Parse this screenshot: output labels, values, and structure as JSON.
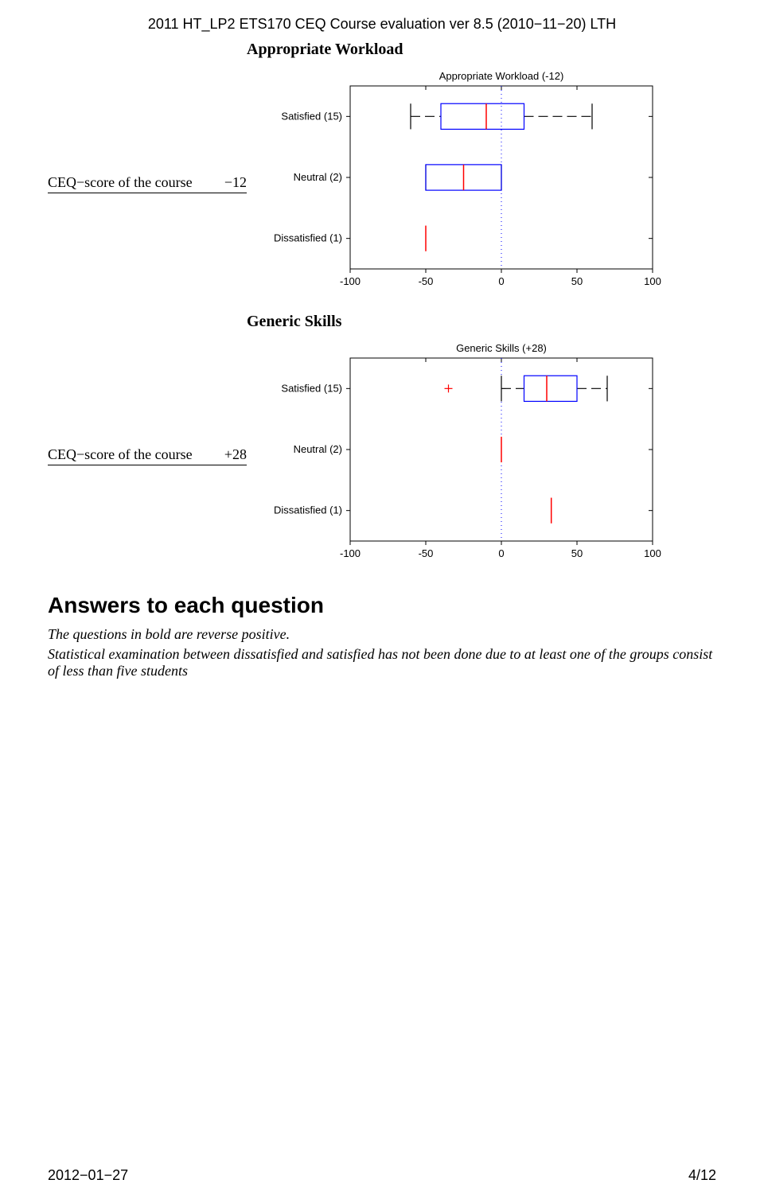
{
  "header": "2011 HT_LP2 ETS170 CEQ Course evaluation ver 8.5 (2010−11−20) LTH",
  "footer_left": "2012−01−27",
  "footer_right": "4/12",
  "answers_heading": "Answers to each question",
  "note1": "The questions in bold are reverse positive.",
  "note2": "Statistical examination between dissatisfied and satisfied has not been done due to at least one of the groups consist of less than five students",
  "charts": [
    {
      "section_label": "Appropriate Workload",
      "score_label": "CEQ−score of the course",
      "score_value": "−12",
      "chart_title": "Appropriate Workload (-12)",
      "xlim": [
        -100,
        100
      ],
      "xtick_step": 50,
      "y_labels": [
        "Satisfied (15)",
        "Neutral (2)",
        "Dissatisfied (1)"
      ],
      "box_color": "#0000ff",
      "median_color": "#ff0000",
      "whisker_color": "#000000",
      "outlier_color": "#ff0000",
      "zero_line_color": "#0000ff",
      "axis_color": "#000000",
      "background_color": "#ffffff",
      "title_fontsize": 13,
      "label_fontsize": 13,
      "tick_fontsize": 13,
      "rows": [
        {
          "type": "box",
          "q1": -40,
          "median": -10,
          "q3": 15,
          "wlo": -60,
          "whi": 60
        },
        {
          "type": "box",
          "q1": -50,
          "median": -25,
          "q3": 0,
          "wlo": -50,
          "whi": 0
        },
        {
          "type": "line",
          "value": -50
        }
      ]
    },
    {
      "section_label": "Generic Skills",
      "score_label": "CEQ−score of the course",
      "score_value": "+28",
      "chart_title": "Generic Skills (+28)",
      "xlim": [
        -100,
        100
      ],
      "xtick_step": 50,
      "y_labels": [
        "Satisfied (15)",
        "Neutral (2)",
        "Dissatisfied (1)"
      ],
      "box_color": "#0000ff",
      "median_color": "#ff0000",
      "whisker_color": "#000000",
      "outlier_color": "#ff0000",
      "zero_line_color": "#0000ff",
      "axis_color": "#000000",
      "background_color": "#ffffff",
      "title_fontsize": 13,
      "label_fontsize": 13,
      "tick_fontsize": 13,
      "rows": [
        {
          "type": "box",
          "q1": 15,
          "median": 30,
          "q3": 50,
          "wlo": 0,
          "whi": 70,
          "outliers": [
            -35
          ]
        },
        {
          "type": "line",
          "value": 0
        },
        {
          "type": "line",
          "value": 33
        }
      ]
    }
  ]
}
